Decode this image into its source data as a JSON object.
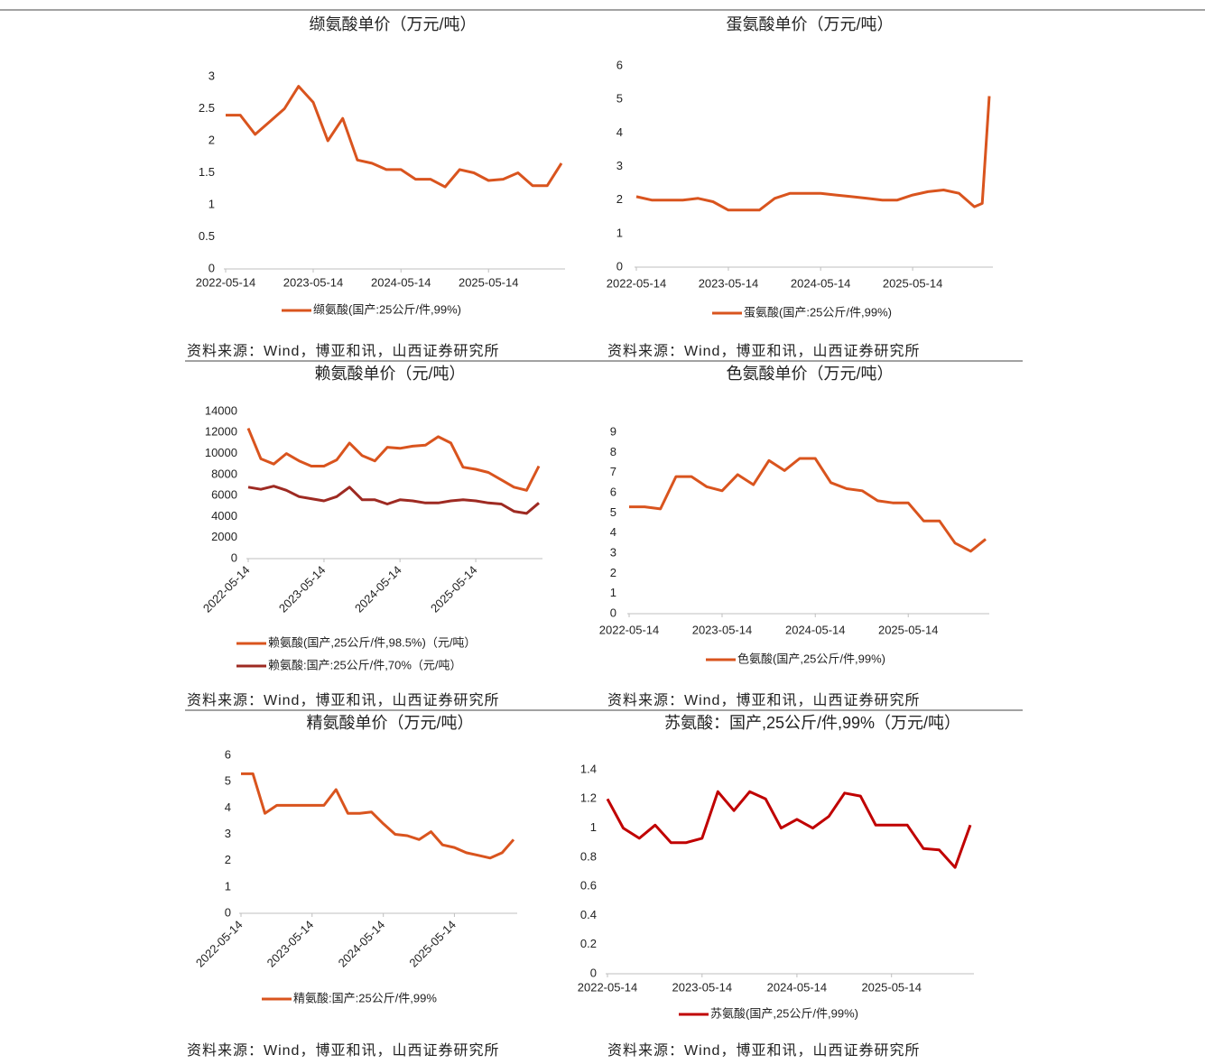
{
  "chart_data": [
    {
      "type": "line",
      "title": "缬氨酸单价（万元/吨）",
      "source": "资料来源：Wind，博亚和讯，山西证券研究所",
      "x": [
        "2022-05-14",
        "2022-07-14",
        "2022-09-14",
        "2022-11-14",
        "2023-01-14",
        "2023-03-14",
        "2023-05-14",
        "2023-07-14",
        "2023-09-14",
        "2023-11-14",
        "2024-01-14",
        "2024-03-14",
        "2024-05-14",
        "2024-07-14",
        "2024-09-14",
        "2024-11-14",
        "2025-01-14",
        "2025-03-14",
        "2025-05-14",
        "2025-07-14",
        "2025-09-14",
        "2025-11-14",
        "2026-01-14",
        "2026-03-14"
      ],
      "series": [
        {
          "name": "缬氨酸(国产:25公斤/件,99%)",
          "color": "#d9541e",
          "values": [
            2.4,
            2.4,
            2.1,
            2.3,
            2.5,
            2.85,
            2.6,
            2.0,
            2.35,
            1.7,
            1.65,
            1.55,
            1.55,
            1.4,
            1.4,
            1.28,
            1.55,
            1.5,
            1.38,
            1.4,
            1.5,
            1.3,
            1.3,
            1.65
          ]
        }
      ],
      "xlim": [
        "2022-05-14",
        "2026-03-14"
      ],
      "xticks": [
        "2022-05-14",
        "2023-05-14",
        "2024-05-14",
        "2025-05-14"
      ],
      "ylim": [
        0,
        3
      ],
      "yticks": [
        0,
        0.5,
        1,
        1.5,
        2,
        2.5,
        3
      ]
    },
    {
      "type": "line",
      "title": "蛋氨酸单价（万元/吨）",
      "source": "资料来源：Wind，博亚和讯，山西证券研究所",
      "x": [
        "2022-05-14",
        "2022-07-14",
        "2022-09-14",
        "2022-11-14",
        "2023-01-14",
        "2023-03-14",
        "2023-05-14",
        "2023-07-14",
        "2023-09-14",
        "2023-11-14",
        "2024-01-14",
        "2024-03-14",
        "2024-05-14",
        "2024-07-14",
        "2024-09-14",
        "2024-11-14",
        "2025-01-14",
        "2025-03-14",
        "2025-05-14",
        "2025-07-14",
        "2025-09-14",
        "2025-11-14",
        "2026-01-14",
        "2026-02-14",
        "2026-03-14"
      ],
      "series": [
        {
          "name": "蛋氨酸(国产:25公斤/件,99%)",
          "color": "#d9541e",
          "values": [
            2.1,
            2.0,
            2.0,
            2.0,
            2.05,
            1.95,
            1.7,
            1.7,
            1.7,
            2.05,
            2.2,
            2.2,
            2.2,
            2.15,
            2.1,
            2.05,
            2.0,
            2.0,
            2.15,
            2.25,
            2.3,
            2.2,
            1.8,
            1.9,
            5.1
          ]
        }
      ],
      "xlim": [
        "2022-05-14",
        "2026-03-14"
      ],
      "xticks": [
        "2022-05-14",
        "2023-05-14",
        "2024-05-14",
        "2025-05-14"
      ],
      "ylim": [
        0,
        6
      ],
      "yticks": [
        0,
        1,
        2,
        3,
        4,
        5,
        6
      ]
    },
    {
      "type": "line",
      "title": "赖氨酸单价（元/吨）",
      "source": "资料来源：Wind，博亚和讯，山西证券研究所",
      "x": [
        "2022-05-14",
        "2022-07-14",
        "2022-09-14",
        "2022-11-14",
        "2023-01-14",
        "2023-03-14",
        "2023-05-14",
        "2023-07-14",
        "2023-09-14",
        "2023-11-14",
        "2024-01-14",
        "2024-03-14",
        "2024-05-14",
        "2024-07-14",
        "2024-09-14",
        "2024-11-14",
        "2025-01-14",
        "2025-03-14",
        "2025-05-14",
        "2025-07-14",
        "2025-09-14",
        "2025-11-14",
        "2026-01-14",
        "2026-03-14"
      ],
      "series": [
        {
          "name": "赖氨酸(国产,25公斤/件,98.5%)（元/吨）",
          "color": "#d9541e",
          "values": [
            12400,
            9500,
            9000,
            10000,
            9300,
            8800,
            8800,
            9400,
            11000,
            9800,
            9300,
            10600,
            10500,
            10700,
            10800,
            11600,
            11000,
            8700,
            8500,
            8200,
            7500,
            6800,
            6500,
            8800
          ]
        },
        {
          "name": "赖氨酸:国产:25公斤/件,70%（元/吨）",
          "color": "#9e2a22",
          "values": [
            6800,
            6600,
            6900,
            6500,
            5900,
            5700,
            5500,
            5900,
            6800,
            5600,
            5600,
            5200,
            5600,
            5500,
            5300,
            5300,
            5500,
            5600,
            5500,
            5300,
            5200,
            4500,
            4300,
            5300
          ]
        }
      ],
      "xlim": [
        "2022-05-14",
        "2026-03-14"
      ],
      "xticks": [
        "2022-05-14",
        "2023-05-14",
        "2024-05-14",
        "2025-05-14"
      ],
      "ylim": [
        0,
        14000
      ],
      "yticks": [
        0,
        2000,
        4000,
        6000,
        8000,
        10000,
        12000,
        14000
      ]
    },
    {
      "type": "line",
      "title": "色氨酸单价（万元/吨）",
      "source": "资料来源：Wind，博亚和讯，山西证券研究所",
      "x": [
        "2022-05-14",
        "2022-07-14",
        "2022-09-14",
        "2022-11-14",
        "2023-01-14",
        "2023-03-14",
        "2023-05-14",
        "2023-07-14",
        "2023-09-14",
        "2023-11-14",
        "2024-01-14",
        "2024-03-14",
        "2024-05-14",
        "2024-07-14",
        "2024-09-14",
        "2024-11-14",
        "2025-01-14",
        "2025-03-14",
        "2025-05-14",
        "2025-07-14",
        "2025-09-14",
        "2025-11-14",
        "2026-01-14",
        "2026-03-14"
      ],
      "series": [
        {
          "name": "色氨酸(国产,25公斤/件,99%)",
          "color": "#d9541e",
          "values": [
            5.3,
            5.3,
            5.2,
            6.8,
            6.8,
            6.3,
            6.1,
            6.9,
            6.4,
            7.6,
            7.1,
            7.7,
            7.7,
            6.5,
            6.2,
            6.1,
            5.6,
            5.5,
            5.5,
            4.6,
            4.6,
            3.5,
            3.1,
            3.7
          ]
        }
      ],
      "xlim": [
        "2022-05-14",
        "2026-03-14"
      ],
      "xticks": [
        "2022-05-14",
        "2023-05-14",
        "2024-05-14",
        "2025-05-14"
      ],
      "ylim": [
        0,
        9
      ],
      "yticks": [
        0,
        1,
        2,
        3,
        4,
        5,
        6,
        7,
        8,
        9
      ]
    },
    {
      "type": "line",
      "title": "精氨酸单价（万元/吨）",
      "source": "资料来源：Wind，博亚和讯，山西证券研究所",
      "x": [
        "2022-05-14",
        "2022-07-14",
        "2022-09-14",
        "2022-11-14",
        "2023-01-14",
        "2023-03-14",
        "2023-05-14",
        "2023-07-14",
        "2023-09-14",
        "2023-11-14",
        "2024-01-14",
        "2024-03-14",
        "2024-05-14",
        "2024-07-14",
        "2024-09-14",
        "2024-11-14",
        "2025-01-14",
        "2025-03-14",
        "2025-05-14",
        "2025-07-14",
        "2025-09-14",
        "2025-11-14",
        "2026-01-14",
        "2026-03-14"
      ],
      "series": [
        {
          "name": "精氨酸:国产:25公斤/件,99%",
          "color": "#d9541e",
          "values": [
            5.3,
            5.3,
            3.8,
            4.1,
            4.1,
            4.1,
            4.1,
            4.1,
            4.7,
            3.8,
            3.8,
            3.85,
            3.4,
            3.0,
            2.95,
            2.8,
            3.1,
            2.6,
            2.5,
            2.3,
            2.2,
            2.1,
            2.3,
            2.8
          ]
        }
      ],
      "xlim": [
        "2022-05-14",
        "2026-03-14"
      ],
      "xticks": [
        "2022-05-14",
        "2023-05-14",
        "2024-05-14",
        "2025-05-14"
      ],
      "ylim": [
        0,
        6
      ],
      "yticks": [
        0,
        1,
        2,
        3,
        4,
        5,
        6
      ]
    },
    {
      "type": "line",
      "title": "苏氨酸：国产,25公斤/件,99%（万元/吨）",
      "source": "资料来源：Wind，博亚和讯，山西证券研究所",
      "x": [
        "2022-05-14",
        "2022-07-14",
        "2022-09-14",
        "2022-11-14",
        "2023-01-14",
        "2023-03-14",
        "2023-05-14",
        "2023-07-14",
        "2023-09-14",
        "2023-11-14",
        "2024-01-14",
        "2024-03-14",
        "2024-05-14",
        "2024-07-14",
        "2024-09-14",
        "2024-11-14",
        "2025-01-14",
        "2025-03-14",
        "2025-05-14",
        "2025-07-14",
        "2025-09-14",
        "2025-11-14",
        "2026-01-14",
        "2026-03-14"
      ],
      "series": [
        {
          "name": "苏氨酸(国产,25公斤/件,99%)",
          "color": "#c00000",
          "values": [
            1.2,
            1.0,
            0.93,
            1.02,
            0.9,
            0.9,
            0.93,
            1.25,
            1.12,
            1.25,
            1.2,
            1.0,
            1.06,
            1.0,
            1.08,
            1.24,
            1.22,
            1.02,
            1.02,
            1.02,
            0.86,
            0.85,
            0.73,
            1.02
          ]
        }
      ],
      "xlim": [
        "2022-05-14",
        "2026-03-14"
      ],
      "xticks": [
        "2022-05-14",
        "2023-05-14",
        "2024-05-14",
        "2025-05-14"
      ],
      "ylim": [
        0,
        1.4
      ],
      "yticks": [
        0,
        0.2,
        0.4,
        0.6,
        0.8,
        1,
        1.2,
        1.4
      ]
    }
  ]
}
